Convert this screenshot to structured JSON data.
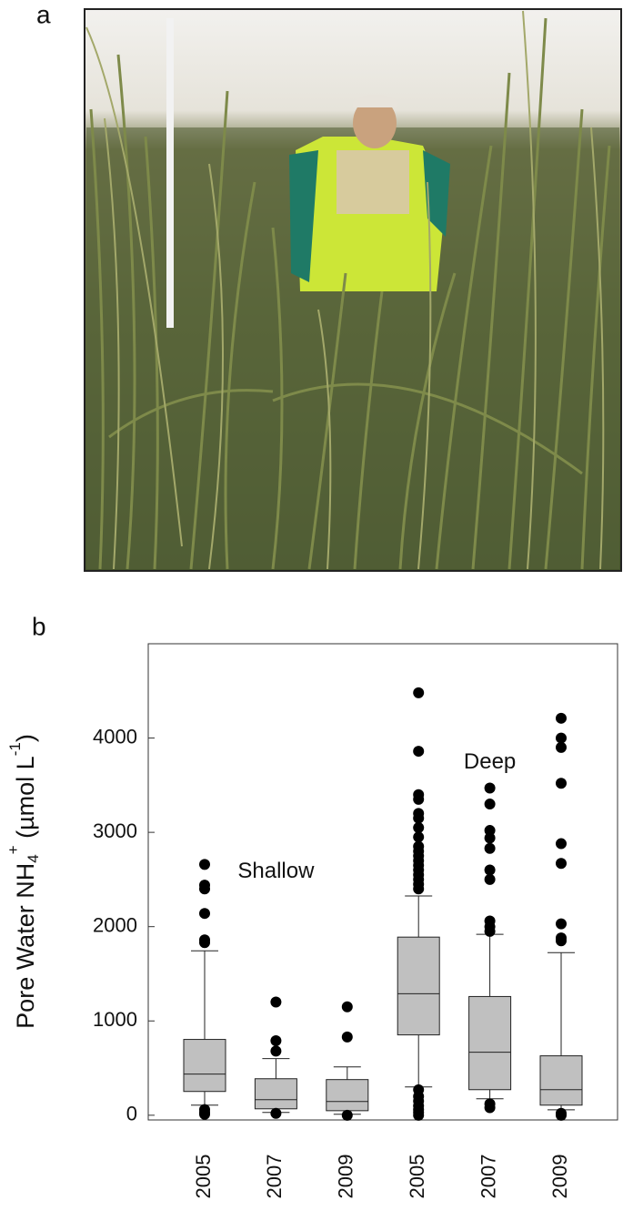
{
  "panel_labels": [
    "a",
    "b"
  ],
  "chart_data": {
    "type": "box",
    "ylabel": [
      "Pore Water NH",
      "4",
      "+",
      " (µmol L",
      "-1",
      ")"
    ],
    "categories": [
      "2005",
      "2007",
      "2009",
      "2005",
      "2007",
      "2009"
    ],
    "annotations": [
      {
        "text": "Shallow",
        "category": 1
      },
      {
        "text": "Deep",
        "category": 4
      }
    ],
    "color": "#c0c0c0",
    "ylim": [
      -50,
      5000
    ],
    "yticks": [
      0,
      1000,
      2000,
      3000,
      4000
    ],
    "boxes": [
      {
        "whislo": 107,
        "q1": 252,
        "med": 436,
        "q3": 804,
        "whishi": 1743,
        "fliers": [
          2660,
          2440,
          2400,
          2140,
          1860,
          1830,
          60,
          30,
          10
        ]
      },
      {
        "whislo": 30,
        "q1": 68,
        "med": 165,
        "q3": 387,
        "whishi": 600,
        "fliers": [
          1200,
          790,
          680,
          20
        ]
      },
      {
        "whislo": 10,
        "q1": 48,
        "med": 145,
        "q3": 378,
        "whishi": 513,
        "fliers": [
          1150,
          830,
          0
        ]
      },
      {
        "whislo": 300,
        "q1": 852,
        "med": 1288,
        "q3": 1889,
        "whishi": 2325,
        "fliers": [
          4480,
          3860,
          3400,
          3350,
          3200,
          3150,
          3050,
          2950,
          2850,
          2800,
          2750,
          2700,
          2650,
          2600,
          2550,
          2500,
          2450,
          2400,
          270,
          200,
          150,
          100,
          60,
          30,
          0
        ]
      },
      {
        "whislo": 174,
        "q1": 271,
        "med": 668,
        "q3": 1259,
        "whishi": 1918,
        "fliers": [
          3470,
          3300,
          3020,
          2940,
          2830,
          2600,
          2500,
          2060,
          2000,
          1950,
          120,
          80
        ]
      },
      {
        "whislo": 58,
        "q1": 107,
        "med": 271,
        "q3": 630,
        "whishi": 1724,
        "fliers": [
          4210,
          4000,
          3900,
          3520,
          2880,
          2670,
          2030,
          1880,
          1850,
          20,
          0
        ]
      }
    ]
  }
}
